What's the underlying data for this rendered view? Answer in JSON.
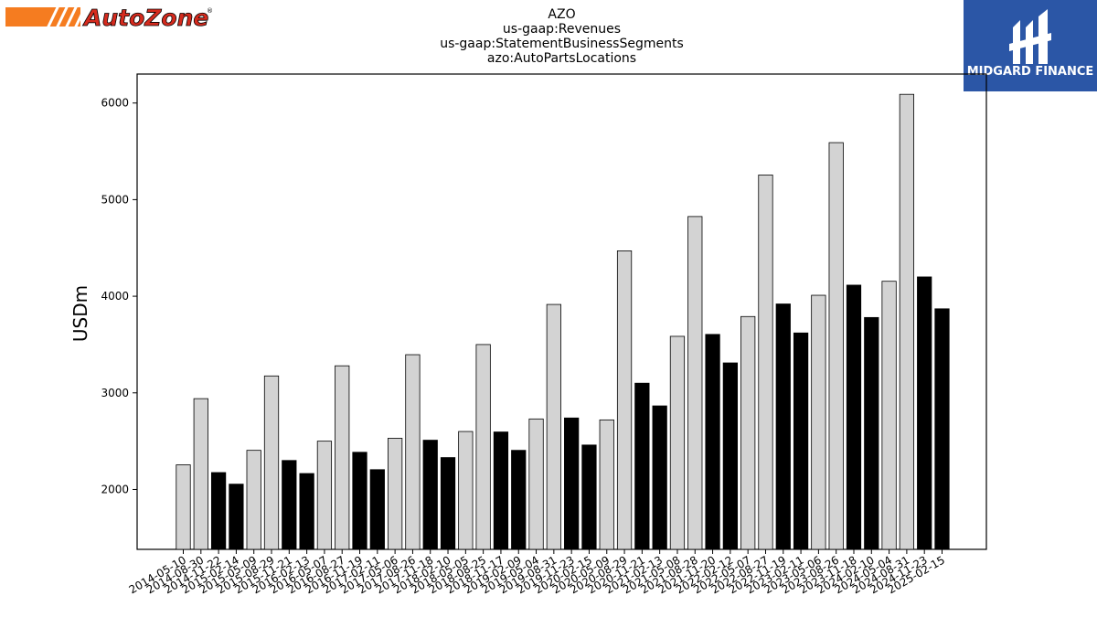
{
  "logos": {
    "left_brand": "AutoZone",
    "right_brand": "MIDGARD FINANCE",
    "right_brand_bg": "#2b56a6"
  },
  "chart_data": {
    "type": "bar",
    "title_lines": [
      "AZO",
      "us-gaap:Revenues",
      "us-gaap:StatementBusinessSegments",
      "azo:AutoPartsLocations"
    ],
    "xlabel": "",
    "ylabel": "USDm",
    "ylim": [
      1380,
      6300
    ],
    "yticks": [
      2000,
      3000,
      4000,
      5000,
      6000
    ],
    "grid": false,
    "colors": {
      "fiscal_q4": "#d3d3d3",
      "other_quarters": "#000000",
      "edge": "#000000"
    },
    "categories": [
      "2014-05-10",
      "2014-08-30",
      "2014-11-22",
      "2015-02-14",
      "2015-05-09",
      "2015-08-29",
      "2015-11-21",
      "2016-02-13",
      "2016-05-07",
      "2016-08-27",
      "2016-11-19",
      "2017-02-11",
      "2017-05-06",
      "2017-08-26",
      "2017-11-18",
      "2018-02-10",
      "2018-05-05",
      "2018-08-25",
      "2018-11-17",
      "2019-02-09",
      "2019-05-04",
      "2019-08-31",
      "2019-11-23",
      "2020-02-15",
      "2020-05-09",
      "2020-08-29",
      "2020-11-21",
      "2021-02-13",
      "2021-05-08",
      "2021-08-28",
      "2021-11-20",
      "2022-02-12",
      "2022-05-07",
      "2022-08-27",
      "2022-11-19",
      "2023-02-11",
      "2023-05-06",
      "2023-08-26",
      "2023-11-18",
      "2024-02-10",
      "2024-05-04",
      "2024-08-31",
      "2024-11-23",
      "2025-02-15"
    ],
    "values": [
      2255,
      2940,
      2175,
      2055,
      2405,
      3175,
      2300,
      2165,
      2500,
      3280,
      2385,
      2205,
      2530,
      3395,
      2510,
      2330,
      2600,
      3500,
      2595,
      2405,
      2730,
      3915,
      2740,
      2460,
      2720,
      4470,
      3100,
      2865,
      3585,
      4825,
      3605,
      3310,
      3790,
      5255,
      3920,
      3620,
      4010,
      5590,
      4115,
      3780,
      4155,
      6090,
      4200,
      3870
    ],
    "fill": [
      "light",
      "light",
      "dark",
      "dark",
      "light",
      "light",
      "dark",
      "dark",
      "light",
      "light",
      "dark",
      "dark",
      "light",
      "light",
      "dark",
      "dark",
      "light",
      "light",
      "dark",
      "dark",
      "light",
      "light",
      "dark",
      "dark",
      "light",
      "light",
      "dark",
      "dark",
      "light",
      "light",
      "dark",
      "dark",
      "light",
      "light",
      "dark",
      "dark",
      "light",
      "light",
      "dark",
      "dark",
      "light",
      "light",
      "dark",
      "dark"
    ]
  }
}
